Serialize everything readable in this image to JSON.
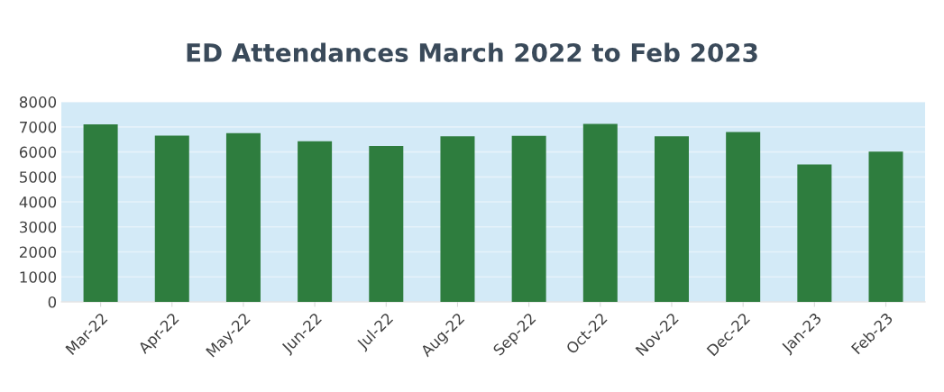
{
  "chart_data": {
    "type": "bar",
    "title": "ED Attendances March 2022 to Feb 2023",
    "categories": [
      "Mar-22",
      "Apr-22",
      "May-22",
      "Jun-22",
      "Jul-22",
      "Aug-22",
      "Sep-22",
      "Oct-22",
      "Nov-22",
      "Dec-22",
      "Jan-23",
      "Feb-23"
    ],
    "values": [
      7100,
      6650,
      6750,
      6430,
      6240,
      6620,
      6640,
      7120,
      6620,
      6800,
      5500,
      6010
    ],
    "color": "#2e7d3e",
    "ylim": [
      0,
      8000
    ],
    "yticks": [
      0,
      1000,
      2000,
      3000,
      4000,
      5000,
      6000,
      7000,
      8000
    ],
    "grid": "y"
  }
}
